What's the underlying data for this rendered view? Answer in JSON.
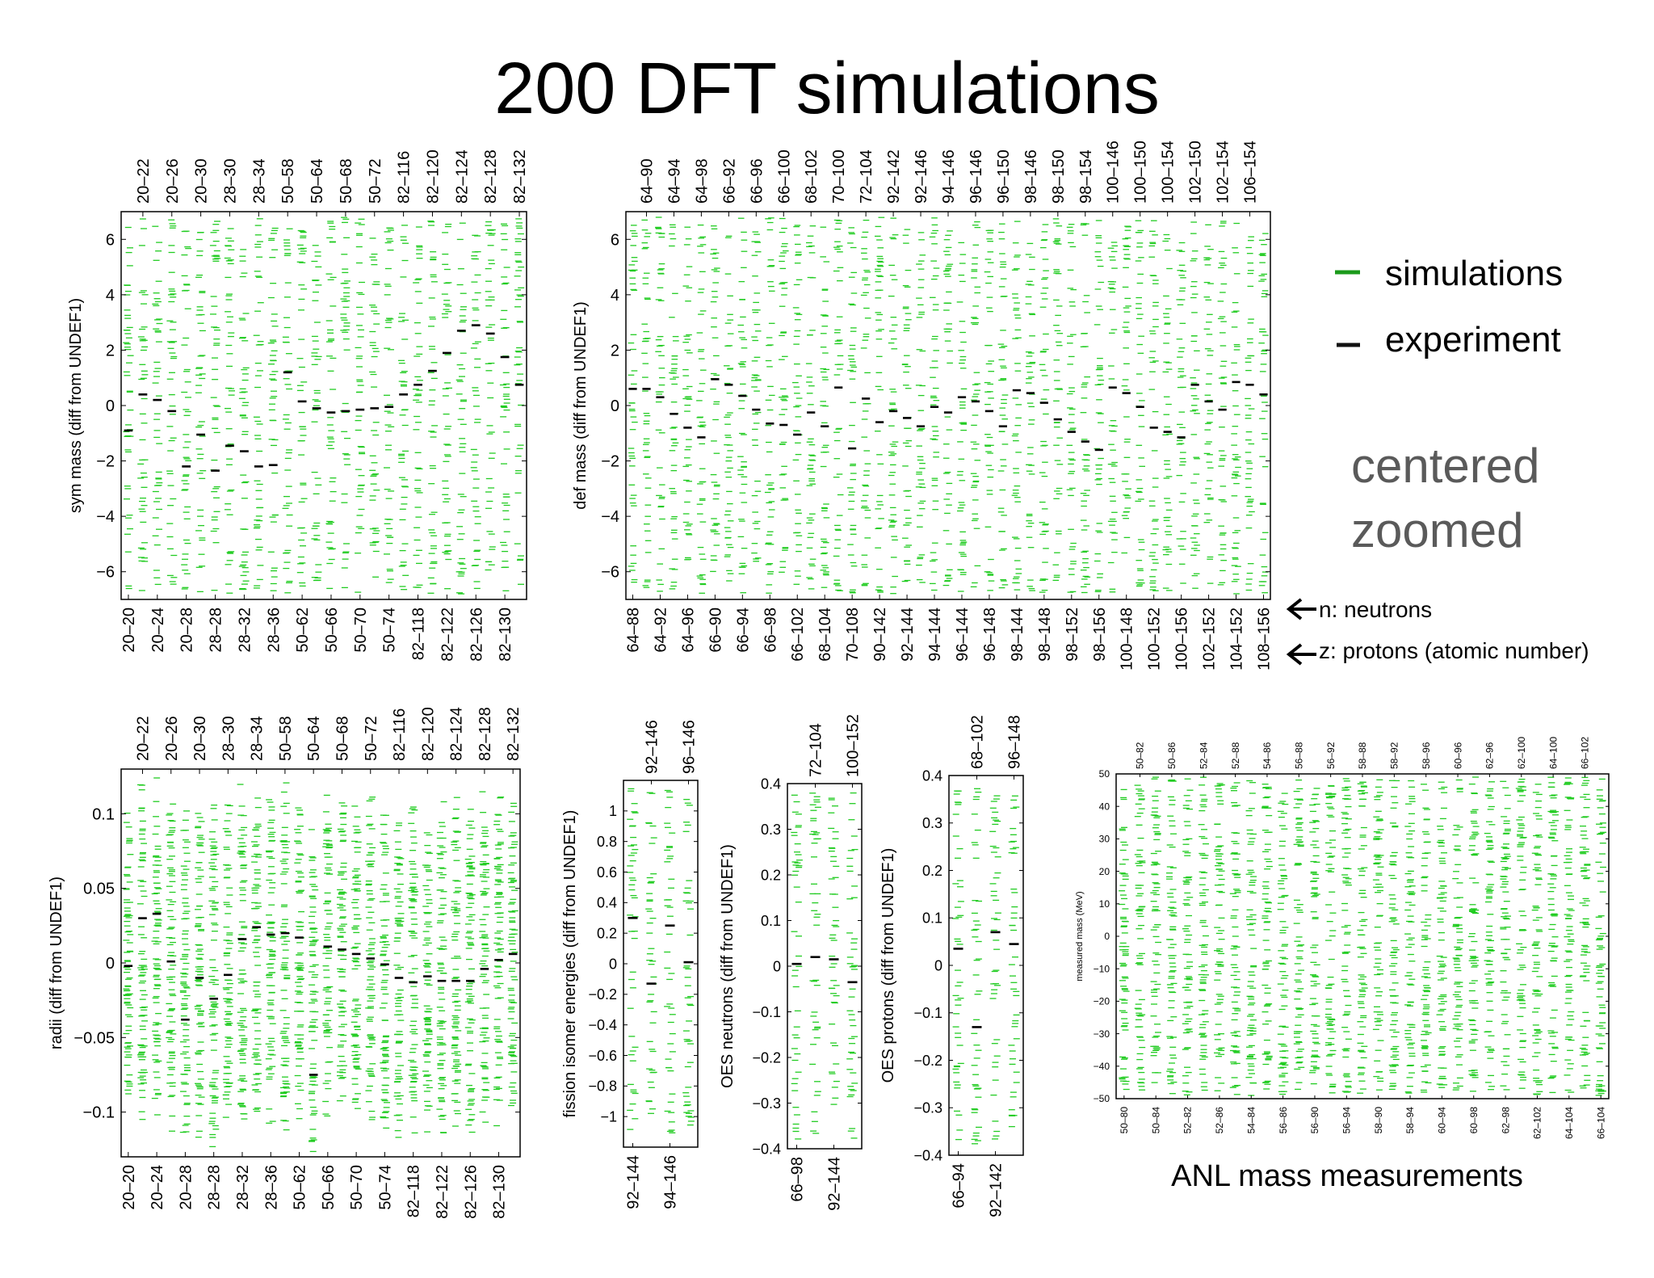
{
  "title": "200 DFT simulations",
  "legend": {
    "simulations_label": "simulations",
    "experiment_label": "experiment",
    "simulations_color": "#1a9a1a",
    "experiment_color": "#111111"
  },
  "note": {
    "line1": "centered",
    "line2": "zoomed"
  },
  "axis_keys": {
    "n_label": "n: neutrons",
    "z_label": "z: protons (atomic number)"
  },
  "anl_caption": "ANL mass measurements",
  "colors": {
    "sim": "#22cc22",
    "exp": "#000000",
    "frame": "#000000"
  },
  "chart_data": [
    {
      "id": "sym",
      "type": "scatter",
      "ylabel": "sym mass (diff from UNDEF1)",
      "ylim": [
        -7,
        7
      ],
      "yticks": [
        -6,
        -4,
        -2,
        0,
        2,
        4,
        6
      ],
      "top_labels": [
        "20–22",
        "20–26",
        "20–30",
        "28–30",
        "28–34",
        "50–58",
        "50–64",
        "50–68",
        "50–72",
        "82–116",
        "82–120",
        "82–124",
        "82–128",
        "82–132"
      ],
      "bottom_labels": [
        "20–20",
        "20–24",
        "20–28",
        "28–28",
        "28–32",
        "28–36",
        "50–62",
        "50–66",
        "50–70",
        "50–74",
        "82–118",
        "82–122",
        "82–126",
        "82–130"
      ],
      "sim_spread": 6.8,
      "experiment": [
        -0.9,
        0.4,
        0.2,
        -0.2,
        -2.2,
        -1.05,
        -2.35,
        -1.45,
        -1.65,
        -2.2,
        -2.15,
        1.2,
        0.15,
        -0.1,
        -0.25,
        -0.2,
        -0.15,
        -0.1,
        -0.05,
        0.4,
        0.75,
        1.25,
        1.9,
        2.7,
        2.9,
        2.6,
        1.75,
        0.75
      ]
    },
    {
      "id": "def",
      "type": "scatter",
      "ylabel": "def mass (diff from UNDEF1)",
      "ylim": [
        -7,
        7
      ],
      "yticks": [
        -6,
        -4,
        -2,
        0,
        2,
        4,
        6
      ],
      "top_labels": [
        "64–90",
        "64–94",
        "64–98",
        "66–92",
        "66–96",
        "66–100",
        "68–102",
        "70–100",
        "72–104",
        "92–142",
        "92–146",
        "94–146",
        "96–146",
        "96–150",
        "98–146",
        "98–150",
        "98–154",
        "100–146",
        "100–150",
        "100–154",
        "102–150",
        "102–154",
        "106–154"
      ],
      "bottom_labels": [
        "64–88",
        "64–92",
        "64–96",
        "66–90",
        "66–94",
        "66–98",
        "66–102",
        "68–104",
        "70–108",
        "90–142",
        "92–144",
        "94–144",
        "96–144",
        "96–148",
        "98–144",
        "98–148",
        "98–152",
        "98–156",
        "100–148",
        "100–152",
        "100–156",
        "102–152",
        "104–152",
        "108–156"
      ],
      "sim_spread": 6.8,
      "experiment": [
        0.6,
        0.6,
        0.3,
        -0.3,
        -0.8,
        -1.15,
        0.95,
        0.75,
        0.35,
        -0.15,
        -0.65,
        -0.7,
        -1.05,
        -0.25,
        -0.75,
        0.65,
        -1.55,
        0.25,
        -0.6,
        -0.2,
        -0.45,
        -0.75,
        -0.05,
        -0.25,
        0.3,
        0.15,
        -0.2,
        -0.75,
        0.55,
        0.45,
        0.1,
        -0.5,
        -0.95,
        -1.3,
        -1.6,
        0.65,
        0.45,
        -0.05,
        -0.8,
        -0.95,
        -1.15,
        0.75,
        0.15,
        -0.15,
        0.85,
        0.75,
        0.4
      ]
    },
    {
      "id": "radii",
      "type": "scatter",
      "ylabel": "radii (diff from UNDEF1)",
      "ylim": [
        -0.13,
        0.13
      ],
      "yticks": [
        -0.1,
        -0.05,
        0,
        0.05,
        0.1
      ],
      "ytick_labels": [
        "−0.1",
        "−0.05",
        "0",
        "0.05",
        "0.1"
      ],
      "top_labels": [
        "20–22",
        "20–26",
        "20–30",
        "28–30",
        "28–34",
        "50–58",
        "50–64",
        "50–68",
        "50–72",
        "82–116",
        "82–120",
        "82–124",
        "82–128",
        "82–132"
      ],
      "bottom_labels": [
        "20–20",
        "20–24",
        "20–28",
        "28–28",
        "28–32",
        "28–36",
        "50–62",
        "50–66",
        "50–70",
        "50–74",
        "82–118",
        "82–122",
        "82–126",
        "82–130"
      ],
      "sim_spread": 0.12,
      "experiment": [
        -0.002,
        0.03,
        0.033,
        0.001,
        -0.038,
        -0.01,
        -0.024,
        -0.008,
        0.016,
        0.024,
        0.019,
        0.02,
        0.017,
        -0.075,
        0.011,
        0.009,
        0.006,
        0.003,
        -0.001,
        -0.01,
        -0.013,
        -0.009,
        -0.012,
        -0.012,
        -0.012,
        -0.004,
        0.002,
        0.006
      ]
    },
    {
      "id": "fission",
      "type": "scatter",
      "ylabel": "fission isomer energies (diff from UNDEF1)",
      "ylim": [
        -1.2,
        1.2
      ],
      "yticks": [
        -1,
        -0.8,
        -0.6,
        -0.4,
        -0.2,
        0,
        0.2,
        0.4,
        0.6,
        0.8,
        1
      ],
      "ytick_labels": [
        "−1",
        "−0.8",
        "−0.6",
        "−0.4",
        "−0.2",
        "0",
        "0.2",
        "0.4",
        "0.6",
        "0.8",
        "1"
      ],
      "top_labels": [
        "92–146",
        "96–146"
      ],
      "bottom_labels": [
        "92–144",
        "94–146"
      ],
      "sim_spread": 1.15,
      "experiment": [
        0.3,
        -0.13,
        0.25,
        0.01
      ]
    },
    {
      "id": "oesn",
      "type": "scatter",
      "ylabel": "OES neutrons (diff from UNDEF1)",
      "ylim": [
        -0.4,
        0.4
      ],
      "yticks": [
        -0.4,
        -0.3,
        -0.2,
        -0.1,
        0,
        0.1,
        0.2,
        0.3,
        0.4
      ],
      "ytick_labels": [
        "−0.4",
        "−0.3",
        "−0.2",
        "−0.1",
        "0",
        "0.1",
        "0.2",
        "0.3",
        "0.4"
      ],
      "top_labels": [
        "72–104",
        "100–152"
      ],
      "bottom_labels": [
        "66–98",
        "92–144"
      ],
      "sim_spread": 0.38,
      "experiment": [
        0.005,
        0.02,
        0.015,
        -0.035
      ]
    },
    {
      "id": "oesp",
      "type": "scatter",
      "ylabel": "OES protons (diff from UNDEF1)",
      "ylim": [
        -0.4,
        0.4
      ],
      "yticks": [
        -0.4,
        -0.3,
        -0.2,
        -0.1,
        0,
        0.1,
        0.2,
        0.3,
        0.4
      ],
      "ytick_labels": [
        "−0.4",
        "−0.3",
        "−0.2",
        "−0.1",
        "0",
        "0.1",
        "0.2",
        "0.3",
        "0.4"
      ],
      "top_labels": [
        "68–102",
        "96–148"
      ],
      "bottom_labels": [
        "66–94",
        "92–142"
      ],
      "sim_spread": 0.38,
      "experiment": [
        0.035,
        -0.13,
        0.07,
        0.045
      ]
    },
    {
      "id": "anl",
      "type": "scatter",
      "ylabel": "measured mass (MeV)",
      "ylim": [
        -50,
        50
      ],
      "yticks": [
        -50,
        -40,
        -30,
        -20,
        -10,
        0,
        10,
        20,
        30,
        40,
        50
      ],
      "ytick_labels": [
        "−50",
        "−40",
        "−30",
        "−20",
        "−10",
        "0",
        "10",
        "20",
        "30",
        "40",
        "50"
      ],
      "top_labels": [
        "50–82",
        "50–86",
        "52–84",
        "52–88",
        "54–86",
        "56–88",
        "56–92",
        "58–88",
        "58–92",
        "58–96",
        "60–96",
        "62–96",
        "62–100",
        "64–100",
        "66–102"
      ],
      "bottom_labels": [
        "50–80",
        "50–84",
        "52–82",
        "52–86",
        "54–84",
        "56–86",
        "56–90",
        "56–94",
        "58–90",
        "58–94",
        "60–94",
        "60–98",
        "62–98",
        "62–102",
        "64–104",
        "66–104"
      ],
      "sim_spread": 49,
      "experiment": []
    }
  ]
}
